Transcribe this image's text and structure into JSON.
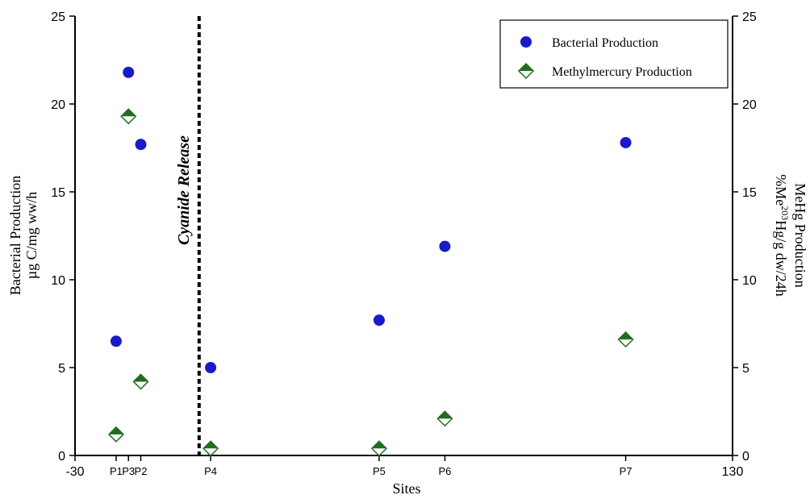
{
  "chart_data": {
    "type": "scatter",
    "xlabel": "Sites",
    "x_range": [
      -30,
      130
    ],
    "x_end_labels": [
      "-30",
      "130"
    ],
    "sites": [
      {
        "name": "P1",
        "x": -20
      },
      {
        "name": "P3",
        "x": -17
      },
      {
        "name": "P2",
        "x": -14
      },
      {
        "name": "P4",
        "x": 3
      },
      {
        "name": "P5",
        "x": 44
      },
      {
        "name": "P6",
        "x": 60
      },
      {
        "name": "P7",
        "x": 104
      }
    ],
    "y_left": {
      "label_line1": "Bacterial Production",
      "label_line2": "µg C/mg ww/h",
      "range": [
        0,
        25
      ],
      "ticks": [
        "0",
        "5",
        "10",
        "15",
        "20",
        "25"
      ]
    },
    "y_right": {
      "label_line1": "MeHg Production",
      "label_line2_pre": "%Me",
      "label_line2_sup": "203",
      "label_line2_post": "Hg/g dw/24h",
      "range": [
        0,
        25
      ],
      "ticks": [
        "0",
        "5",
        "10",
        "15",
        "20",
        "25"
      ]
    },
    "series": [
      {
        "name": "Bacterial Production",
        "axis": "left",
        "marker": "circle",
        "color": "#1a1ac8",
        "points": [
          {
            "site": "P1",
            "x": -20,
            "y": 6.5
          },
          {
            "site": "P3",
            "x": -17,
            "y": 21.8
          },
          {
            "site": "P2",
            "x": -14,
            "y": 17.7
          },
          {
            "site": "P4",
            "x": 3,
            "y": 5.0
          },
          {
            "site": "P5",
            "x": 44,
            "y": 7.7
          },
          {
            "site": "P6",
            "x": 60,
            "y": 11.9
          },
          {
            "site": "P7",
            "x": 104,
            "y": 17.8
          }
        ]
      },
      {
        "name": "Methylmercury Production",
        "axis": "right",
        "marker": "diamond",
        "color": "#1f6e1f",
        "points": [
          {
            "site": "P1",
            "x": -20,
            "y": 1.2
          },
          {
            "site": "P3",
            "x": -17,
            "y": 19.3
          },
          {
            "site": "P2",
            "x": -14,
            "y": 4.2
          },
          {
            "site": "P4",
            "x": 3,
            "y": 0.4
          },
          {
            "site": "P5",
            "x": 44,
            "y": 0.4
          },
          {
            "site": "P6",
            "x": 60,
            "y": 2.1
          },
          {
            "site": "P7",
            "x": 104,
            "y": 6.6
          }
        ]
      }
    ],
    "annotation": {
      "text": "Cyanide Release",
      "x": 0,
      "line_style": "dashed"
    },
    "legend_position": "top-right",
    "grid": false
  }
}
